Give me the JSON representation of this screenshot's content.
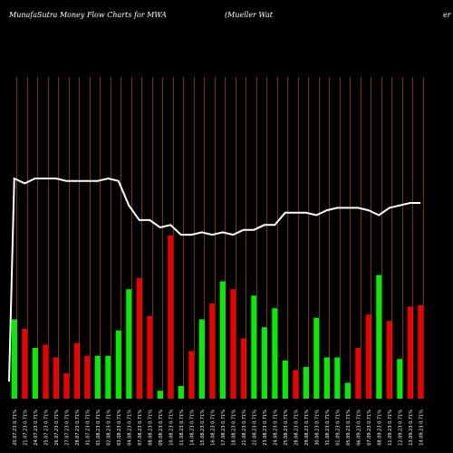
{
  "header": {
    "title_left": "MunafaSutra  Money Flow  Charts for MWA",
    "title_right": "(Mueller Wat",
    "title_far_right": "er"
  },
  "colors": {
    "background": "#000000",
    "up": "#00ee00",
    "down": "#ee0000",
    "grid": "#cc6600",
    "line": "#ffffff",
    "text": "#ffffff"
  },
  "chart_data": {
    "type": "bar",
    "series": [
      {
        "values": [
          50,
          44,
          32,
          34,
          26,
          16,
          35,
          27,
          27,
          27,
          43,
          69,
          76,
          52,
          5,
          103,
          8,
          30,
          50,
          60,
          74,
          69,
          38,
          65,
          45,
          57,
          24,
          18,
          20,
          51,
          26,
          26,
          10,
          32,
          53,
          78,
          49,
          25,
          58,
          59
        ],
        "colors": [
          "up",
          "down",
          "up",
          "down",
          "down",
          "down",
          "down",
          "down",
          "up",
          "up",
          "up",
          "up",
          "down",
          "down",
          "up",
          "down",
          "up",
          "down",
          "up",
          "down",
          "up",
          "down",
          "down",
          "up",
          "up",
          "up",
          "up",
          "down",
          "up",
          "up",
          "up",
          "up",
          "up",
          "down",
          "down",
          "up",
          "down",
          "up",
          "down",
          "down"
        ]
      }
    ],
    "line": [
      90,
      88,
      90,
      90,
      90,
      89,
      89,
      89,
      89,
      90,
      89,
      79,
      73,
      73,
      70,
      71,
      67,
      67,
      68,
      67,
      68,
      67,
      69,
      69,
      71,
      71,
      76,
      76,
      76,
      75,
      77,
      78,
      78,
      78,
      77,
      75,
      78,
      79,
      80,
      80
    ],
    "line_start": 7,
    "x_labels": [
      "20.07.23 0.71%",
      "21.07.23 0.71%",
      "24.07.23 0.71%",
      "25.07.23 0.71%",
      "26.07.23 0.71%",
      "27.07.23 0.71%",
      "28.07.23 0.71%",
      "31.07.23 0.71%",
      "01.08.23 0.71%",
      "02.08.23 0.71%",
      "03.08.23 0.71%",
      "04.08.23 0.71%",
      "07.08.23 0.71%",
      "08.08.23 0.71%",
      "09.08.23 0.71%",
      "10.08.23 0.71%",
      "11.08.23 0.71%",
      "14.08.23 0.71%",
      "15.08.23 0.71%",
      "16.08.23 0.71%",
      "17.08.23 0.71%",
      "18.08.23 0.71%",
      "21.08.23 0.71%",
      "22.08.23 0.71%",
      "23.08.23 0.71%",
      "24.08.23 0.71%",
      "25.08.23 0.71%",
      "28.08.23 0.71%",
      "29.08.23 0.71%",
      "30.08.23 0.71%",
      "31.08.23 0.71%",
      "01.09.23 0.71%",
      "05.09.23 0.71%",
      "06.09.23 0.71%",
      "07.09.23 0.71%",
      "08.09.23 0.71%",
      "11.09.23 0.71%",
      "12.09.23 0.71%",
      "13.09.23 0.71%",
      "14.09.23 0.71%"
    ]
  }
}
